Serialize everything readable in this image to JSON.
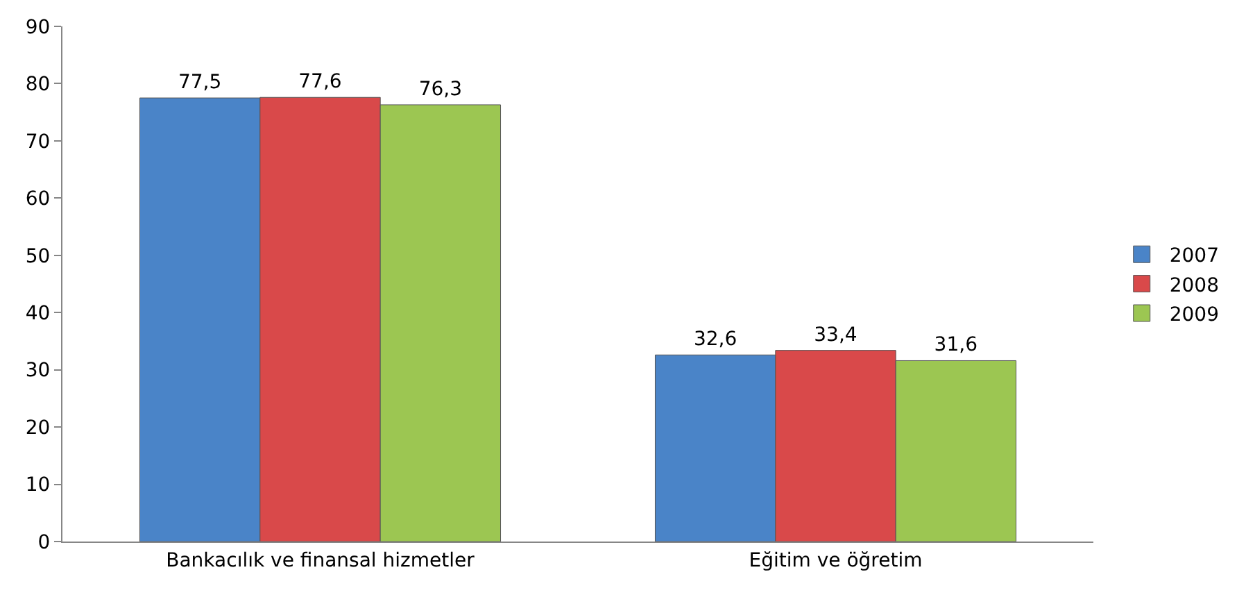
{
  "chart_data": {
    "type": "bar",
    "categories": [
      "Bankacılık ve finansal hizmetler",
      "Eğitim ve öğretim"
    ],
    "series": [
      {
        "name": "2007",
        "color": "#4a84c8",
        "values": [
          77.5,
          32.6
        ],
        "value_labels": [
          "77,5",
          "32,6"
        ]
      },
      {
        "name": "2008",
        "color": "#d9494a",
        "values": [
          77.6,
          33.4
        ],
        "value_labels": [
          "77,6",
          "33,4"
        ]
      },
      {
        "name": "2009",
        "color": "#9cc652",
        "values": [
          76.3,
          31.6
        ],
        "value_labels": [
          "76,3",
          "31,6"
        ]
      }
    ],
    "ylim": [
      0,
      90
    ],
    "yticks": [
      0,
      10,
      20,
      30,
      40,
      50,
      60,
      70,
      80,
      90
    ],
    "grid": false,
    "legend": "right"
  }
}
